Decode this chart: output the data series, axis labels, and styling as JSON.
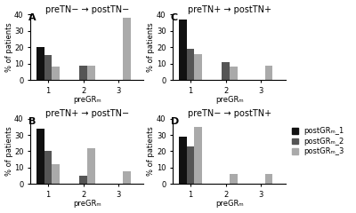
{
  "panels": [
    {
      "label": "A",
      "title": "preTN− → postTN−",
      "data": {
        "1": [
          20,
          15,
          8
        ],
        "2": [
          0,
          9,
          9
        ],
        "3": [
          0,
          0,
          38
        ]
      }
    },
    {
      "label": "C",
      "title": "preTN+ → postTN+",
      "data": {
        "1": [
          37,
          19,
          16
        ],
        "2": [
          0,
          11,
          8
        ],
        "3": [
          0,
          0,
          9
        ]
      }
    },
    {
      "label": "B",
      "title": "preTN+ → postTN−",
      "data": {
        "1": [
          34,
          20,
          12
        ],
        "2": [
          0,
          5,
          22
        ],
        "3": [
          0,
          0,
          8
        ]
      }
    },
    {
      "label": "D",
      "title": "preTN− → postTN+",
      "data": {
        "1": [
          29,
          23,
          35
        ],
        "2": [
          0,
          0,
          6
        ],
        "3": [
          0,
          0,
          6
        ]
      },
      "has_legend": true
    }
  ],
  "bar_colors": [
    "#111111",
    "#555555",
    "#aaaaaa"
  ],
  "legend_labels": [
    "postGRₘ_1",
    "postGRₘ_2",
    "postGRₘ_3"
  ],
  "xlabel": "preGRₘ",
  "ylabel": "% of patients",
  "ylim": [
    0,
    40
  ],
  "yticks": [
    0,
    10,
    20,
    30,
    40
  ],
  "xticks": [
    1,
    2,
    3
  ],
  "background_color": "#ffffff",
  "title_fontsize": 7,
  "label_fontsize": 6,
  "tick_fontsize": 6,
  "legend_fontsize": 6,
  "bar_width": 0.22
}
